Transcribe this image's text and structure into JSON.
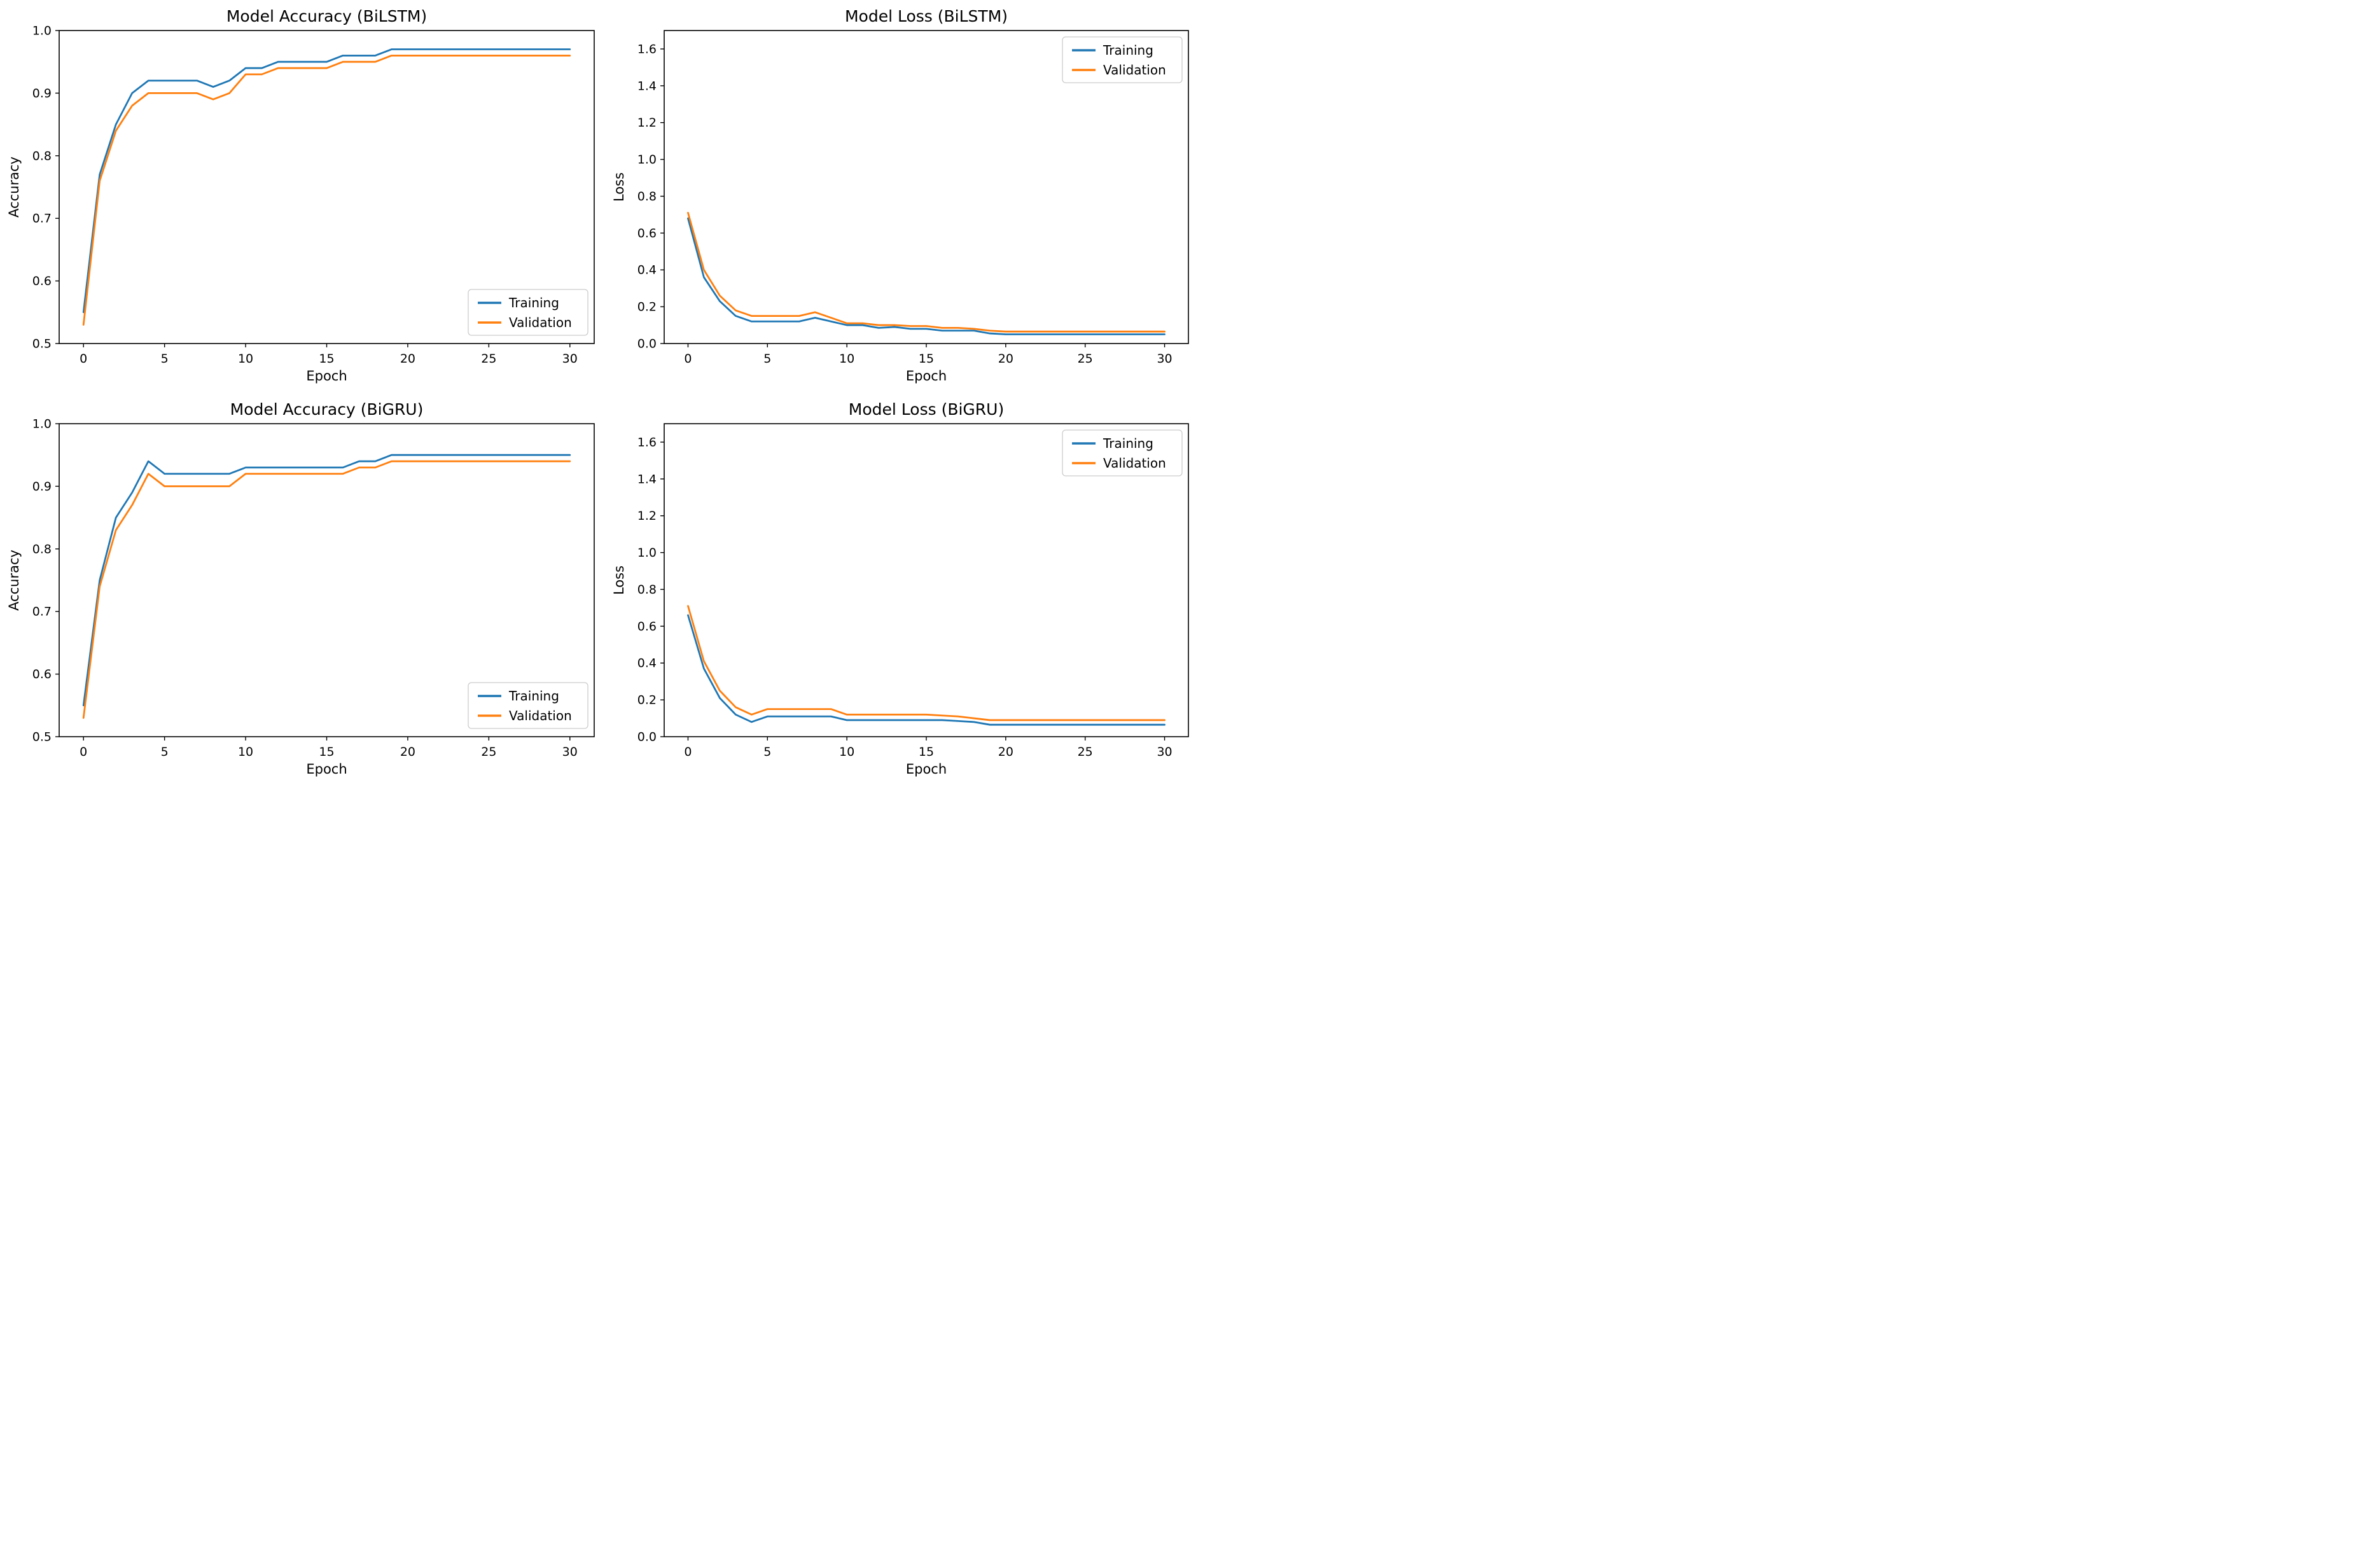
{
  "figure": {
    "background": "#ffffff",
    "accent_blue": "#1f77b4",
    "accent_orange": "#ff7f0e"
  },
  "chart_data": [
    {
      "id": "accuracy-bilstm",
      "type": "line",
      "title": "Model Accuracy (BiLSTM)",
      "xlabel": "Epoch",
      "ylabel": "Accuracy",
      "xlim": [
        -1.5,
        31.5
      ],
      "ylim": [
        0.5,
        1.0
      ],
      "xticks": [
        0,
        5,
        10,
        15,
        20,
        25,
        30
      ],
      "yticks": [
        0.5,
        0.6,
        0.7,
        0.8,
        0.9,
        1.0
      ],
      "ytick_decimals": 1,
      "grid": false,
      "legend": {
        "position": "lower-right",
        "items": [
          {
            "label": "Training",
            "color": "#1f77b4"
          },
          {
            "label": "Validation",
            "color": "#ff7f0e"
          }
        ]
      },
      "x": [
        0,
        1,
        2,
        3,
        4,
        5,
        6,
        7,
        8,
        9,
        10,
        11,
        12,
        13,
        14,
        15,
        16,
        17,
        18,
        19,
        20,
        21,
        22,
        23,
        24,
        25,
        26,
        27,
        28,
        29,
        30
      ],
      "series": [
        {
          "name": "Training",
          "color": "#1f77b4",
          "values": [
            0.55,
            0.77,
            0.85,
            0.9,
            0.92,
            0.92,
            0.92,
            0.92,
            0.91,
            0.92,
            0.94,
            0.94,
            0.95,
            0.95,
            0.95,
            0.95,
            0.96,
            0.96,
            0.96,
            0.97,
            0.97,
            0.97,
            0.97,
            0.97,
            0.97,
            0.97,
            0.97,
            0.97,
            0.97,
            0.97,
            0.97
          ]
        },
        {
          "name": "Validation",
          "color": "#ff7f0e",
          "values": [
            0.53,
            0.76,
            0.84,
            0.88,
            0.9,
            0.9,
            0.9,
            0.9,
            0.89,
            0.9,
            0.93,
            0.93,
            0.94,
            0.94,
            0.94,
            0.94,
            0.95,
            0.95,
            0.95,
            0.96,
            0.96,
            0.96,
            0.96,
            0.96,
            0.96,
            0.96,
            0.96,
            0.96,
            0.96,
            0.96,
            0.96
          ]
        }
      ]
    },
    {
      "id": "loss-bilstm",
      "type": "line",
      "title": "Model Loss (BiLSTM)",
      "xlabel": "Epoch",
      "ylabel": "Loss",
      "xlim": [
        -1.5,
        31.5
      ],
      "ylim": [
        0.0,
        1.7
      ],
      "xticks": [
        0,
        5,
        10,
        15,
        20,
        25,
        30
      ],
      "yticks": [
        0.0,
        0.2,
        0.4,
        0.6,
        0.8,
        1.0,
        1.2,
        1.4,
        1.6
      ],
      "ytick_decimals": 1,
      "grid": false,
      "legend": {
        "position": "upper-right",
        "items": [
          {
            "label": "Training",
            "color": "#1f77b4"
          },
          {
            "label": "Validation",
            "color": "#ff7f0e"
          }
        ]
      },
      "x": [
        0,
        1,
        2,
        3,
        4,
        5,
        6,
        7,
        8,
        9,
        10,
        11,
        12,
        13,
        14,
        15,
        16,
        17,
        18,
        19,
        20,
        21,
        22,
        23,
        24,
        25,
        26,
        27,
        28,
        29,
        30
      ],
      "series": [
        {
          "name": "Training",
          "color": "#1f77b4",
          "values": [
            0.68,
            0.36,
            0.23,
            0.15,
            0.12,
            0.12,
            0.12,
            0.12,
            0.14,
            0.12,
            0.1,
            0.1,
            0.085,
            0.09,
            0.08,
            0.08,
            0.07,
            0.07,
            0.07,
            0.055,
            0.05,
            0.05,
            0.05,
            0.05,
            0.05,
            0.05,
            0.05,
            0.05,
            0.05,
            0.05,
            0.05
          ]
        },
        {
          "name": "Validation",
          "color": "#ff7f0e",
          "values": [
            0.71,
            0.4,
            0.26,
            0.18,
            0.15,
            0.15,
            0.15,
            0.15,
            0.17,
            0.14,
            0.11,
            0.11,
            0.1,
            0.1,
            0.095,
            0.095,
            0.085,
            0.085,
            0.08,
            0.07,
            0.065,
            0.065,
            0.065,
            0.065,
            0.065,
            0.065,
            0.065,
            0.065,
            0.065,
            0.065,
            0.065
          ]
        }
      ]
    },
    {
      "id": "accuracy-bigru",
      "type": "line",
      "title": "Model Accuracy (BiGRU)",
      "xlabel": "Epoch",
      "ylabel": "Accuracy",
      "xlim": [
        -1.5,
        31.5
      ],
      "ylim": [
        0.5,
        1.0
      ],
      "xticks": [
        0,
        5,
        10,
        15,
        20,
        25,
        30
      ],
      "yticks": [
        0.5,
        0.6,
        0.7,
        0.8,
        0.9,
        1.0
      ],
      "ytick_decimals": 1,
      "grid": false,
      "legend": {
        "position": "lower-right",
        "items": [
          {
            "label": "Training",
            "color": "#1f77b4"
          },
          {
            "label": "Validation",
            "color": "#ff7f0e"
          }
        ]
      },
      "x": [
        0,
        1,
        2,
        3,
        4,
        5,
        6,
        7,
        8,
        9,
        10,
        11,
        12,
        13,
        14,
        15,
        16,
        17,
        18,
        19,
        20,
        21,
        22,
        23,
        24,
        25,
        26,
        27,
        28,
        29,
        30
      ],
      "series": [
        {
          "name": "Training",
          "color": "#1f77b4",
          "values": [
            0.55,
            0.75,
            0.85,
            0.89,
            0.94,
            0.92,
            0.92,
            0.92,
            0.92,
            0.92,
            0.93,
            0.93,
            0.93,
            0.93,
            0.93,
            0.93,
            0.93,
            0.94,
            0.94,
            0.95,
            0.95,
            0.95,
            0.95,
            0.95,
            0.95,
            0.95,
            0.95,
            0.95,
            0.95,
            0.95,
            0.95
          ]
        },
        {
          "name": "Validation",
          "color": "#ff7f0e",
          "values": [
            0.53,
            0.74,
            0.83,
            0.87,
            0.92,
            0.9,
            0.9,
            0.9,
            0.9,
            0.9,
            0.92,
            0.92,
            0.92,
            0.92,
            0.92,
            0.92,
            0.92,
            0.93,
            0.93,
            0.94,
            0.94,
            0.94,
            0.94,
            0.94,
            0.94,
            0.94,
            0.94,
            0.94,
            0.94,
            0.94,
            0.94
          ]
        }
      ]
    },
    {
      "id": "loss-bigru",
      "type": "line",
      "title": "Model Loss (BiGRU)",
      "xlabel": "Epoch",
      "ylabel": "Loss",
      "xlim": [
        -1.5,
        31.5
      ],
      "ylim": [
        0.0,
        1.7
      ],
      "xticks": [
        0,
        5,
        10,
        15,
        20,
        25,
        30
      ],
      "yticks": [
        0.0,
        0.2,
        0.4,
        0.6,
        0.8,
        1.0,
        1.2,
        1.4,
        1.6
      ],
      "ytick_decimals": 1,
      "grid": false,
      "legend": {
        "position": "upper-right",
        "items": [
          {
            "label": "Training",
            "color": "#1f77b4"
          },
          {
            "label": "Validation",
            "color": "#ff7f0e"
          }
        ]
      },
      "x": [
        0,
        1,
        2,
        3,
        4,
        5,
        6,
        7,
        8,
        9,
        10,
        11,
        12,
        13,
        14,
        15,
        16,
        17,
        18,
        19,
        20,
        21,
        22,
        23,
        24,
        25,
        26,
        27,
        28,
        29,
        30
      ],
      "series": [
        {
          "name": "Training",
          "color": "#1f77b4",
          "values": [
            0.66,
            0.37,
            0.21,
            0.12,
            0.08,
            0.11,
            0.11,
            0.11,
            0.11,
            0.11,
            0.09,
            0.09,
            0.09,
            0.09,
            0.09,
            0.09,
            0.09,
            0.085,
            0.08,
            0.065,
            0.065,
            0.065,
            0.065,
            0.065,
            0.065,
            0.065,
            0.065,
            0.065,
            0.065,
            0.065,
            0.065
          ]
        },
        {
          "name": "Validation",
          "color": "#ff7f0e",
          "values": [
            0.71,
            0.41,
            0.25,
            0.16,
            0.12,
            0.15,
            0.15,
            0.15,
            0.15,
            0.15,
            0.12,
            0.12,
            0.12,
            0.12,
            0.12,
            0.12,
            0.115,
            0.11,
            0.1,
            0.09,
            0.09,
            0.09,
            0.09,
            0.09,
            0.09,
            0.09,
            0.09,
            0.09,
            0.09,
            0.09,
            0.09
          ]
        }
      ]
    }
  ]
}
